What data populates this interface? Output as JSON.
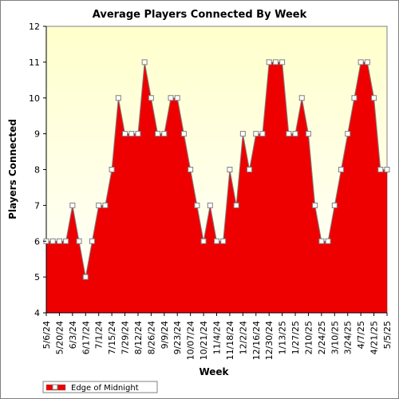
{
  "chart_data": {
    "type": "area",
    "title": "Average Players Connected By Week",
    "xlabel": "Week",
    "ylabel": "Players Connected",
    "ylim": [
      4,
      12
    ],
    "yticks": [
      4,
      5,
      6,
      7,
      8,
      9,
      10,
      11,
      12
    ],
    "x_tick_labels": [
      "5/6/24",
      "5/20/24",
      "6/3/24",
      "6/17/24",
      "7/1/24",
      "7/15/24",
      "7/29/24",
      "8/12/24",
      "8/26/24",
      "9/9/24",
      "9/23/24",
      "10/07/24",
      "10/21/24",
      "11/4/24",
      "11/18/24",
      "12/2/24",
      "12/16/24",
      "12/30/24",
      "1/13/25",
      "1/27/25",
      "2/10/25",
      "2/24/25",
      "3/10/25",
      "3/24/25",
      "4/7/25",
      "4/21/25",
      "5/5/25"
    ],
    "grid": false,
    "legend_position": "bottom-left",
    "colors": {
      "fill": "#ee0000",
      "line": "#808080",
      "plot_bg_top": "#ffffcc",
      "plot_bg_bottom": "#ffffff"
    },
    "series": [
      {
        "name": "Edge of Midnight",
        "values": [
          6,
          6,
          6,
          6,
          7,
          6,
          5,
          6,
          7,
          7,
          8,
          10,
          9,
          9,
          9,
          11,
          10,
          9,
          9,
          10,
          10,
          9,
          8,
          7,
          6,
          7,
          6,
          6,
          8,
          7,
          9,
          8,
          9,
          9,
          11,
          11,
          11,
          9,
          9,
          10,
          9,
          7,
          6,
          6,
          7,
          8,
          9,
          10,
          11,
          11,
          10,
          8,
          8
        ]
      }
    ]
  }
}
